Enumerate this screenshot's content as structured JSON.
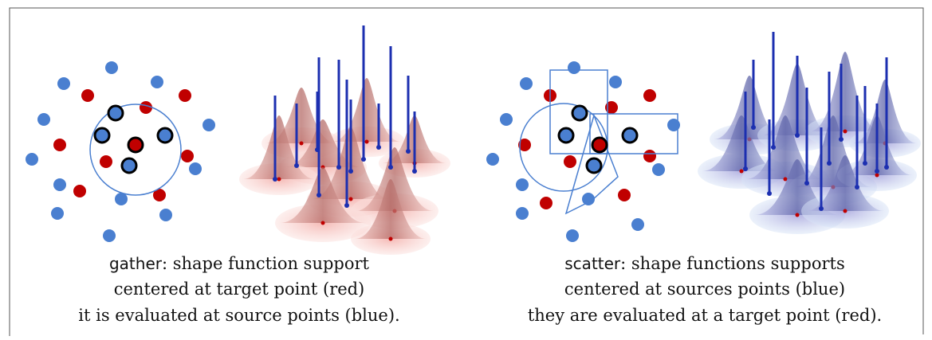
{
  "left_panel": {
    "keyword": "gather",
    "lines": [
      ": shape function support",
      "centered at target point (red)",
      "it is evaluated at source points (blue)."
    ]
  },
  "right_panel": {
    "keyword": "scatter",
    "lines": [
      ": shape functions supports",
      "centered at sources points (blue)",
      "they are evaluated at a target point (red)."
    ]
  }
}
